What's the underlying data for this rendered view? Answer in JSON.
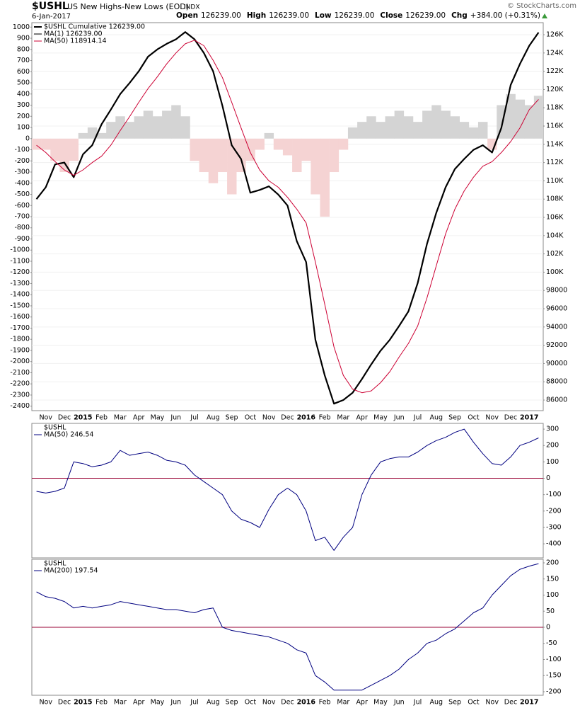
{
  "header": {
    "symbol": "$USHL",
    "name": "US New Highs-New Lows (EOD)",
    "exchange": "INDX",
    "date": "6-Jan-2017",
    "credit": "© StockCharts.com",
    "quote": [
      {
        "label": "Open",
        "value": "126239.00"
      },
      {
        "label": "High",
        "value": "126239.00"
      },
      {
        "label": "Low",
        "value": "126239.00"
      },
      {
        "label": "Close",
        "value": "126239.00"
      },
      {
        "label": "Chg",
        "value": "+384.00 (+0.31%)"
      }
    ]
  },
  "chart_data": [
    {
      "type": "line",
      "show_x_labels": true,
      "grid": true,
      "categories": [
        null,
        "Nov",
        null,
        "Dec",
        null,
        "2015",
        null,
        "Feb",
        null,
        "Mar",
        null,
        "Apr",
        null,
        "May",
        null,
        "Jun",
        null,
        "Jul",
        null,
        "Aug",
        null,
        "Sep",
        null,
        "Oct",
        null,
        "Nov",
        null,
        "Dec",
        null,
        "2016",
        null,
        "Feb",
        null,
        "Mar",
        null,
        "Apr",
        null,
        "May",
        null,
        "Jun",
        null,
        "Jul",
        null,
        "Aug",
        null,
        "Sep",
        null,
        "Oct",
        null,
        "Nov",
        null,
        "Dec",
        null,
        "2017",
        null
      ],
      "ylim": [
        -2440,
        1040
      ],
      "yticks": [
        1000,
        900,
        800,
        700,
        600,
        500,
        400,
        300,
        200,
        100,
        0,
        -100,
        -200,
        -300,
        -400,
        -500,
        -600,
        -700,
        -800,
        -900,
        -1000,
        -1100,
        -1200,
        -1300,
        -1400,
        -1500,
        -1600,
        -1700,
        -1800,
        -1900,
        -2000,
        -2100,
        -2200,
        -2300,
        -2400
      ],
      "y2lim": [
        84840,
        127320
      ],
      "y2ticks": [
        {
          "value": 126000,
          "label": "126K"
        },
        {
          "value": 124000,
          "label": "124K"
        },
        {
          "value": 122000,
          "label": "122K"
        },
        {
          "value": 120000,
          "label": "120K"
        },
        {
          "value": 118000,
          "label": "118K"
        },
        {
          "value": 116000,
          "label": "116K"
        },
        {
          "value": 114000,
          "label": "114K"
        },
        {
          "value": 112000,
          "label": "112K"
        },
        {
          "value": 110000,
          "label": "110K"
        },
        {
          "value": 108000,
          "label": "108K"
        },
        {
          "value": 106000,
          "label": "106K"
        },
        {
          "value": 104000,
          "label": "104K"
        },
        {
          "value": 102000,
          "label": "102K"
        },
        {
          "value": 100000,
          "label": "100K"
        },
        98000,
        96000,
        94000,
        92000,
        90000,
        88000,
        86000
      ],
      "series": [
        {
          "style": "bars",
          "color": "#d4d4d4",
          "negative_color": "#f5d3d3",
          "values": [
            -100,
            -100,
            -200,
            -300,
            -200,
            50,
            100,
            50,
            150,
            200,
            150,
            200,
            250,
            200,
            250,
            300,
            200,
            -200,
            -300,
            -400,
            -300,
            -500,
            -300,
            -200,
            -100,
            50,
            -100,
            -150,
            -300,
            -200,
            -500,
            -700,
            -300,
            -100,
            100,
            150,
            200,
            150,
            200,
            250,
            200,
            150,
            250,
            300,
            250,
            200,
            150,
            100,
            150,
            -100,
            300,
            400,
            350,
            300,
            384
          ]
        },
        {
          "name": "$USHL Cumulative 126239.00",
          "color": "#000000",
          "width": 2.2,
          "axis": "y2",
          "values": [
            108000,
            109300,
            111800,
            112000,
            110400,
            112900,
            113900,
            116200,
            117800,
            119500,
            120700,
            122000,
            123600,
            124400,
            125000,
            125500,
            126300,
            125500,
            124000,
            122000,
            118200,
            113900,
            112400,
            108700,
            109000,
            109400,
            108500,
            107300,
            103400,
            101100,
            92600,
            88700,
            85600,
            86000,
            86800,
            88300,
            89900,
            91400,
            92600,
            94100,
            95700,
            98800,
            103100,
            106500,
            109300,
            111300,
            112400,
            113400,
            113900,
            113100,
            115800,
            120500,
            122800,
            124800,
            126239
          ]
        },
        {
          "name": "MA(1) 126239.00",
          "color": "#000000",
          "width": 1,
          "axis": "y2",
          "values": [
            108000,
            109300,
            111800,
            112000,
            110400,
            112900,
            113900,
            116200,
            117800,
            119500,
            120700,
            122000,
            123600,
            124400,
            125000,
            125500,
            126300,
            125500,
            124000,
            122000,
            118200,
            113900,
            112400,
            108700,
            109000,
            109400,
            108500,
            107300,
            103400,
            101100,
            92600,
            88700,
            85600,
            86000,
            86800,
            88300,
            89900,
            91400,
            92600,
            94100,
            95700,
            98800,
            103100,
            106500,
            109300,
            111300,
            112400,
            113400,
            113900,
            113100,
            115800,
            120500,
            122800,
            124800,
            126239
          ]
        },
        {
          "name": "MA(50) 118914.14",
          "color": "#cc0033",
          "width": 1,
          "axis": "y2",
          "values": [
            113900,
            113100,
            112100,
            111200,
            110600,
            111200,
            112000,
            112700,
            113900,
            115500,
            117000,
            118600,
            120100,
            121400,
            122800,
            124000,
            125000,
            125400,
            124800,
            123200,
            121300,
            118600,
            115800,
            113100,
            111200,
            110000,
            109300,
            108200,
            106900,
            105400,
            101100,
            96500,
            91800,
            88700,
            87200,
            86800,
            87000,
            87900,
            89100,
            90700,
            92200,
            94100,
            97200,
            100700,
            104200,
            106900,
            108900,
            110400,
            111600,
            112100,
            113100,
            114300,
            115800,
            117800,
            118914.14
          ]
        }
      ]
    },
    {
      "type": "line",
      "title": "$USHL",
      "hline": 0,
      "hline_color": "#990033",
      "ylim": [
        -486,
        335
      ],
      "yticks": [
        300,
        200,
        100,
        0,
        -100,
        -200,
        -300,
        -400
      ],
      "series": [
        {
          "name": "MA(50) 246.54",
          "color": "#000080",
          "width": 1,
          "values": [
            -80,
            -90,
            -80,
            -60,
            100,
            90,
            70,
            80,
            100,
            170,
            140,
            150,
            160,
            140,
            110,
            100,
            80,
            20,
            -20,
            -60,
            -100,
            -200,
            -250,
            -270,
            -300,
            -190,
            -100,
            -60,
            -100,
            -200,
            -380,
            -360,
            -440,
            -360,
            -300,
            -100,
            20,
            100,
            120,
            130,
            130,
            160,
            200,
            230,
            250,
            280,
            300,
            220,
            150,
            90,
            80,
            130,
            200,
            220,
            246.54
          ]
        }
      ]
    },
    {
      "type": "line",
      "title": "$USHL",
      "hline": 0,
      "hline_color": "#990033",
      "show_x_labels": true,
      "ylim": [
        -211,
        211
      ],
      "yticks": [
        200,
        150,
        100,
        50,
        0,
        -50,
        -100,
        -150,
        -200
      ],
      "series": [
        {
          "name": "MA(200) 197.54",
          "color": "#000080",
          "width": 1,
          "values": [
            110,
            95,
            90,
            80,
            60,
            65,
            60,
            65,
            70,
            80,
            75,
            70,
            65,
            60,
            55,
            55,
            50,
            45,
            55,
            60,
            0,
            -10,
            -15,
            -20,
            -25,
            -30,
            -40,
            -50,
            -70,
            -80,
            -150,
            -170,
            -195,
            -195,
            -195,
            -195,
            -180,
            -165,
            -150,
            -130,
            -100,
            -80,
            -50,
            -40,
            -20,
            -5,
            20,
            45,
            60,
            100,
            130,
            160,
            180,
            190,
            197.54
          ]
        }
      ]
    }
  ]
}
